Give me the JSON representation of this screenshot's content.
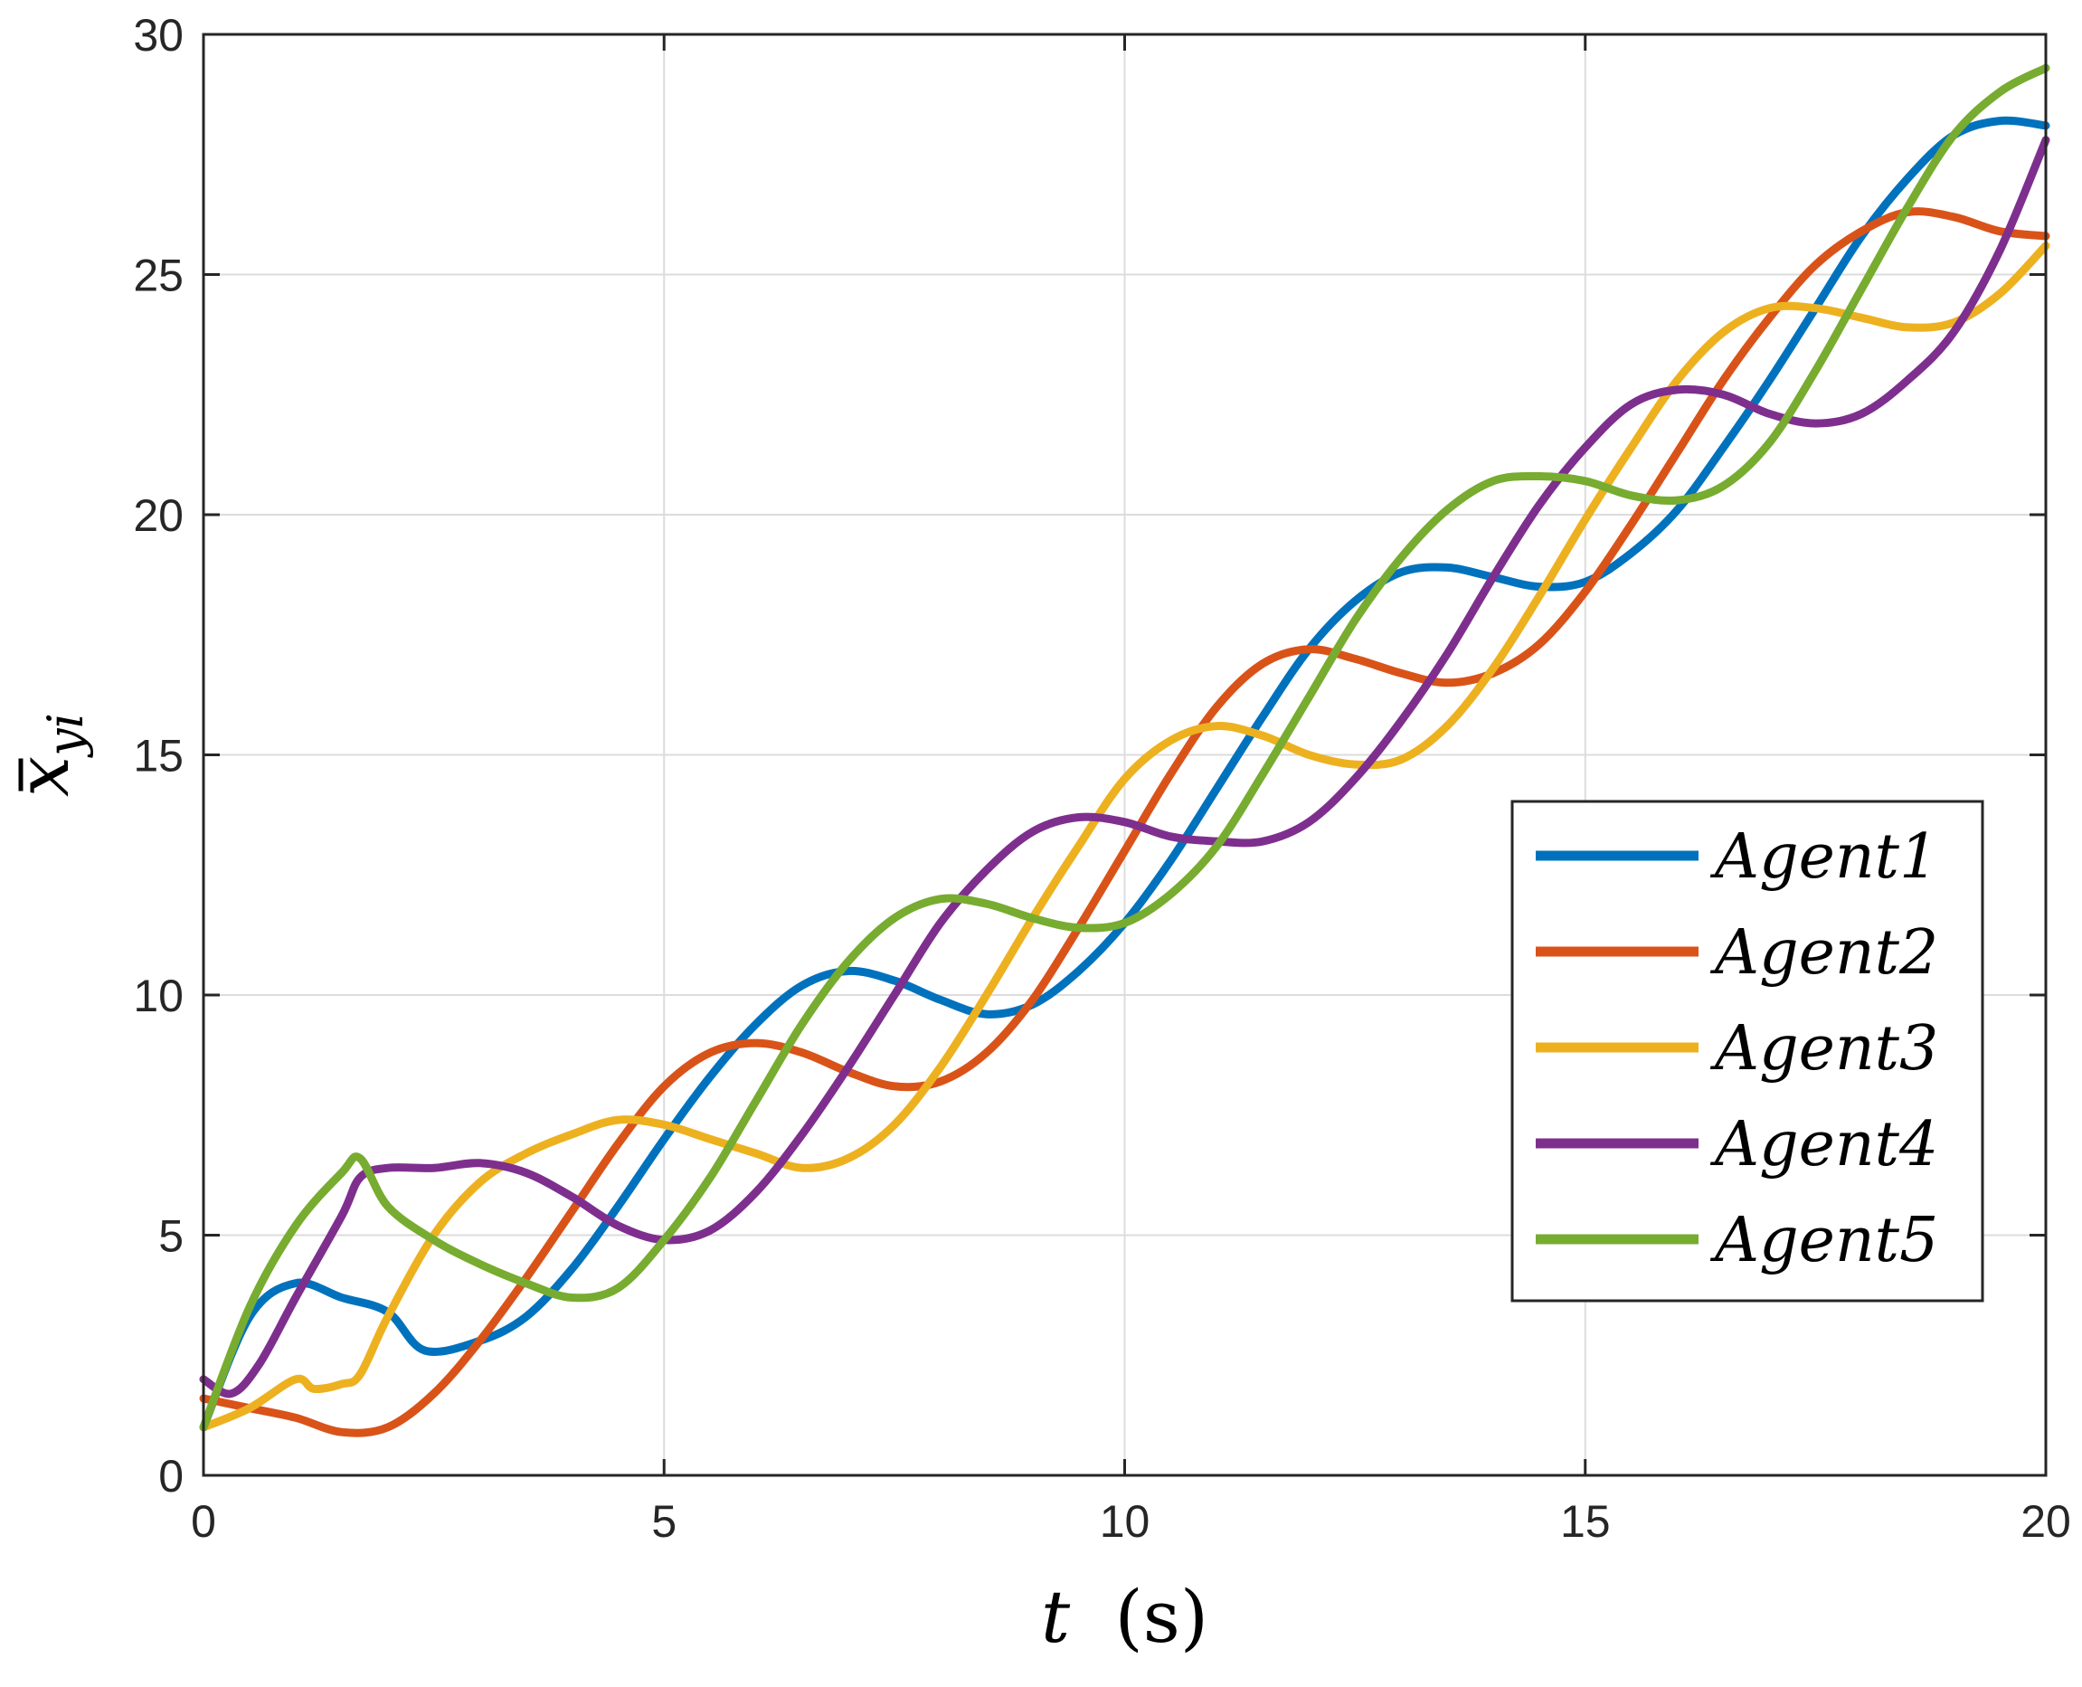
{
  "chart_data": {
    "type": "line",
    "xlabel_var": "t",
    "xlabel_unit": "(s)",
    "ylabel_base": "x",
    "ylabel_sub": "yi",
    "xlim": [
      0,
      20
    ],
    "ylim": [
      0,
      30
    ],
    "xticks": [
      0,
      5,
      10,
      15,
      20
    ],
    "yticks": [
      0,
      5,
      10,
      15,
      20,
      25,
      30
    ],
    "grid": true,
    "legend_position": "right",
    "series": [
      {
        "name": "Agent1",
        "color": "#0072BD",
        "x": [
          0,
          0.5,
          1,
          1.5,
          2,
          2.4,
          3,
          3.5,
          4,
          4.5,
          5,
          5.5,
          6,
          6.5,
          7,
          7.5,
          8,
          8.5,
          9,
          9.5,
          10,
          10.5,
          11,
          11.5,
          12,
          12.5,
          13,
          13.5,
          14,
          14.5,
          15,
          15.5,
          16,
          16.5,
          17,
          17.5,
          18,
          18.5,
          19,
          19.5,
          20
        ],
        "y": [
          1.0,
          3.3,
          4.0,
          3.7,
          3.4,
          2.6,
          2.8,
          3.3,
          4.3,
          5.6,
          7.0,
          8.3,
          9.4,
          10.2,
          10.5,
          10.3,
          9.9,
          9.6,
          9.8,
          10.5,
          11.5,
          12.8,
          14.3,
          15.8,
          17.2,
          18.2,
          18.8,
          18.9,
          18.7,
          18.5,
          18.6,
          19.2,
          20.1,
          21.4,
          22.8,
          24.3,
          25.8,
          27.0,
          27.9,
          28.2,
          28.1
        ]
      },
      {
        "name": "Agent2",
        "color": "#D95319",
        "x": [
          0,
          0.5,
          1,
          1.5,
          2,
          2.5,
          3,
          3.5,
          4,
          4.5,
          5,
          5.5,
          6,
          6.5,
          7,
          7.5,
          8,
          8.5,
          9,
          9.5,
          10,
          10.5,
          11,
          11.5,
          12,
          12.5,
          13,
          13.5,
          14,
          14.5,
          15,
          15.5,
          16,
          16.5,
          17,
          17.5,
          18,
          18.5,
          19,
          19.5,
          20
        ],
        "y": [
          1.6,
          1.4,
          1.2,
          0.9,
          1.0,
          1.7,
          2.8,
          4.1,
          5.5,
          6.9,
          8.1,
          8.8,
          9.0,
          8.8,
          8.4,
          8.1,
          8.2,
          8.8,
          9.9,
          11.4,
          13.0,
          14.6,
          16.0,
          16.9,
          17.2,
          17.0,
          16.7,
          16.5,
          16.7,
          17.3,
          18.4,
          19.8,
          21.3,
          22.8,
          24.1,
          25.2,
          25.9,
          26.3,
          26.2,
          25.9,
          25.8
        ]
      },
      {
        "name": "Agent3",
        "color": "#EDB120",
        "x": [
          0,
          0.5,
          1,
          1.2,
          1.5,
          1.7,
          2,
          2.5,
          3,
          3.5,
          4,
          4.5,
          5,
          5.5,
          6,
          6.5,
          7,
          7.5,
          8,
          8.5,
          9,
          9.5,
          10,
          10.5,
          11,
          11.5,
          12,
          12.5,
          13,
          13.5,
          14,
          14.5,
          15,
          15.5,
          16,
          16.5,
          17,
          17.5,
          18,
          18.5,
          19,
          19.5,
          20
        ],
        "y": [
          1.0,
          1.4,
          2.0,
          1.8,
          1.9,
          2.1,
          3.3,
          5.0,
          6.1,
          6.7,
          7.1,
          7.4,
          7.3,
          7.0,
          6.7,
          6.4,
          6.6,
          7.3,
          8.5,
          10.0,
          11.6,
          13.1,
          14.5,
          15.3,
          15.6,
          15.4,
          15.0,
          14.8,
          14.9,
          15.6,
          16.8,
          18.3,
          19.9,
          21.4,
          22.8,
          23.8,
          24.3,
          24.3,
          24.1,
          23.9,
          24.0,
          24.6,
          25.6
        ]
      },
      {
        "name": "Agent4",
        "color": "#7E2F8E",
        "x": [
          0,
          0.3,
          0.6,
          1,
          1.5,
          1.7,
          2,
          2.5,
          3,
          3.5,
          4,
          4.5,
          5,
          5.5,
          6,
          6.5,
          7,
          7.5,
          8,
          8.5,
          9,
          9.5,
          10,
          10.5,
          11,
          11.5,
          12,
          12.5,
          13,
          13.5,
          14,
          14.5,
          15,
          15.5,
          16,
          16.5,
          17,
          17.5,
          18,
          18.5,
          19,
          19.5,
          20
        ],
        "y": [
          2.0,
          1.7,
          2.3,
          3.7,
          5.4,
          6.2,
          6.4,
          6.4,
          6.5,
          6.3,
          5.8,
          5.2,
          4.9,
          5.1,
          5.9,
          7.1,
          8.5,
          10.0,
          11.5,
          12.6,
          13.4,
          13.7,
          13.6,
          13.3,
          13.2,
          13.2,
          13.6,
          14.5,
          15.7,
          17.1,
          18.7,
          20.2,
          21.4,
          22.3,
          22.6,
          22.5,
          22.1,
          21.9,
          22.1,
          22.8,
          23.8,
          25.5,
          27.8
        ]
      },
      {
        "name": "Agent5",
        "color": "#77AC30",
        "x": [
          0,
          0.5,
          1,
          1.5,
          1.7,
          2,
          2.5,
          3,
          3.5,
          4,
          4.5,
          5,
          5.5,
          6,
          6.5,
          7,
          7.5,
          8,
          8.5,
          9,
          9.5,
          10,
          10.5,
          11,
          11.5,
          12,
          12.5,
          13,
          13.5,
          14,
          14.5,
          15,
          15.5,
          16,
          16.5,
          17,
          17.5,
          18,
          18.5,
          19,
          19.5,
          20
        ],
        "y": [
          1.0,
          3.5,
          5.2,
          6.3,
          6.6,
          5.6,
          4.9,
          4.4,
          4.0,
          3.7,
          3.9,
          4.9,
          6.2,
          7.8,
          9.4,
          10.7,
          11.6,
          12.0,
          11.9,
          11.6,
          11.4,
          11.5,
          12.1,
          13.1,
          14.6,
          16.2,
          17.8,
          19.1,
          20.1,
          20.7,
          20.8,
          20.7,
          20.4,
          20.3,
          20.6,
          21.5,
          23.0,
          24.7,
          26.4,
          27.9,
          28.8,
          29.3
        ]
      }
    ]
  }
}
